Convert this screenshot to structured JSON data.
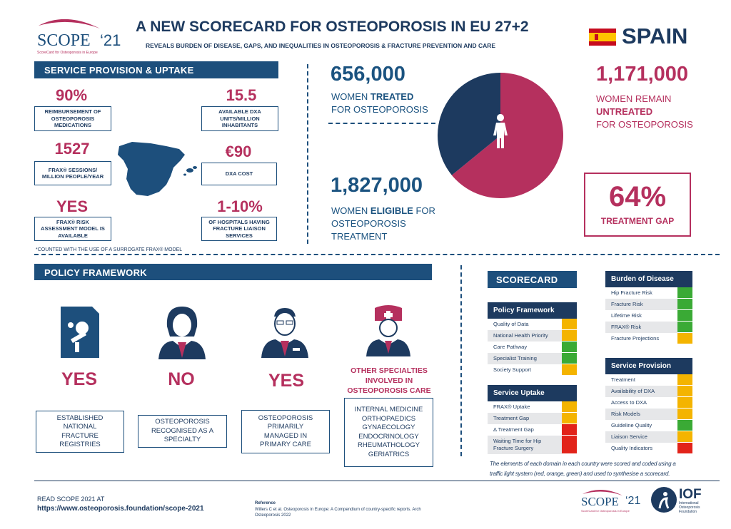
{
  "header": {
    "logo": {
      "text": "SCOPE",
      "year": "‘21",
      "tagline": "ScoreCard for Osteoporosis in Europe"
    },
    "title": "A NEW SCORECARD FOR OSTEOPOROSIS IN EU 27+2",
    "subtitle": "REVEALS BURDEN OF DISEASE, GAPS, AND INEQUALITIES IN OSTEOPOROSIS & FRACTURE PREVENTION AND CARE",
    "country": "SPAIN"
  },
  "service_provision": {
    "title": "SERVICE PROVISION & UPTAKE",
    "stats": [
      {
        "value": "90%",
        "label": "REIMBURSEMENT OF OSTEOPOROSIS MEDICATIONS"
      },
      {
        "value": "15.5",
        "label": "AVAILABLE DXA UNITS/MILLION INHABITANTS"
      },
      {
        "value": "1527",
        "label": "FRAX® SESSIONS/ MILLION PEOPLE/YEAR"
      },
      {
        "value": "€90",
        "label": "DXA COST"
      },
      {
        "value": "YES",
        "label": "FRAX® RISK ASSESSMENT MODEL IS AVAILABLE"
      },
      {
        "value": "1-10%",
        "label": "OF HOSPITALS HAVING FRACTURE LIAISON SERVICES"
      }
    ],
    "footnote": "*COUNTED WITH THE USE OF A SURROGATE FRAX® MODEL"
  },
  "burden": {
    "treated": {
      "number": {
        "value": 656000,
        "label": "656,000"
      },
      "text": [
        "WOMEN",
        "TREATED",
        "FOR OSTEOPOROSIS"
      ],
      "color": "#1d3a5f"
    },
    "untreated": {
      "number": {
        "value": 1171000,
        "label": "1,171,000"
      },
      "text": [
        "WOMEN REMAIN",
        "UNTREATED",
        "FOR OSTEOPOROSIS"
      ],
      "color": "#b5305e"
    },
    "eligible": {
      "number": "1,827,000",
      "text": [
        "WOMEN",
        "ELIGIBLE",
        "FOR OSTEOPOROSIS TREATMENT"
      ]
    },
    "gap": {
      "value": "64%",
      "label": "TREATMENT GAP"
    }
  },
  "policy_framework": {
    "title": "POLICY FRAMEWORK",
    "items": [
      {
        "answer": "YES",
        "label": "ESTABLISHED NATIONAL FRACTURE REGISTRIES"
      },
      {
        "answer": "NO",
        "label": "OSTEOPOROSIS RECOGNISED AS A SPECIALTY"
      },
      {
        "answer": "YES",
        "label": "OSTEOPOROSIS PRIMARILY MANAGED IN PRIMARY CARE"
      }
    ],
    "other_specialties": {
      "title": "OTHER SPECIALTIES INVOLVED IN OSTEOPOROSIS CARE",
      "list": [
        "INTERNAL MEDICINE",
        "ORTHOPAEDICS",
        "GYNAECOLOGY",
        "ENDOCRINOLOGY",
        "RHEUMATHOLOGY",
        "GERIATRICS"
      ]
    }
  },
  "scorecard": {
    "title": "SCORECARD",
    "domains": [
      {
        "name": "Policy Framework",
        "items": [
          {
            "label": "Quality of Data",
            "color": "#f4b400"
          },
          {
            "label": "National Health Priority",
            "color": "#f4b400"
          },
          {
            "label": "Care Pathway",
            "color": "#3aaa35"
          },
          {
            "label": "Specialist Training",
            "color": "#3aaa35"
          },
          {
            "label": "Society Support",
            "color": "#f4b400"
          }
        ]
      },
      {
        "name": "Service Uptake",
        "items": [
          {
            "label": "FRAX® Uptake",
            "color": "#f4b400"
          },
          {
            "label": "Treatment Gap",
            "color": "#f4b400"
          },
          {
            "label": "Δ Treatment Gap",
            "color": "#e2231a"
          },
          {
            "label": "Waiting Time for Hip Fracture Surgery",
            "color": "#e2231a"
          }
        ]
      },
      {
        "name": "Burden of Disease",
        "items": [
          {
            "label": "Hip Fracture Risk",
            "color": "#3aaa35"
          },
          {
            "label": "Fracture Risk",
            "color": "#3aaa35"
          },
          {
            "label": "Lifetime Risk",
            "color": "#3aaa35"
          },
          {
            "label": "FRAX® Risk",
            "color": "#3aaa35"
          },
          {
            "label": "Fracture Projections",
            "color": "#f4b400"
          }
        ]
      },
      {
        "name": "Service Provision",
        "items": [
          {
            "label": "Treatment",
            "color": "#f4b400"
          },
          {
            "label": "Availability of DXA",
            "color": "#f4b400"
          },
          {
            "label": "Access to DXA",
            "color": "#f4b400"
          },
          {
            "label": "Risk Models",
            "color": "#f4b400"
          },
          {
            "label": "Guideline Quality",
            "color": "#3aaa35"
          },
          {
            "label": "Liaison Service",
            "color": "#f4b400"
          },
          {
            "label": "Quality Indicators",
            "color": "#e2231a"
          }
        ]
      }
    ],
    "caption": "The elements of each domain in each country were scored and coded using a traffic light system (red, orange, green) and used to synthesise a scorecard."
  },
  "footer": {
    "read": "READ SCOPE 2021 AT",
    "url": "https://www.osteoporosis.foundation/scope-2021",
    "reference_title": "Reference",
    "reference": "Willers C et al. Osteoporosis in Europe: A Compendium of country-specific reports. Arch Osteoporosis 2022",
    "iof": "IOF",
    "iof_name": "International Osteoporosis Foundation"
  }
}
